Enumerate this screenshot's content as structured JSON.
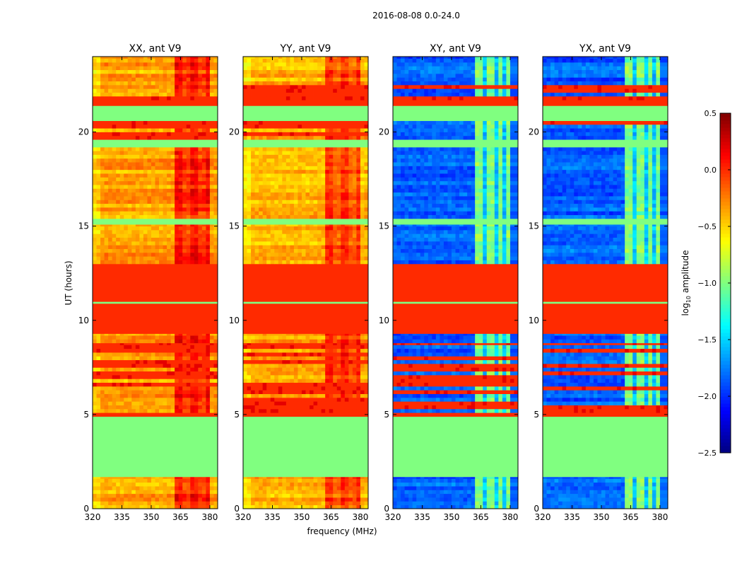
{
  "chart_data": {
    "type": "heatmap",
    "title": "2016-08-08 0.0-24.0",
    "xlabel": "frequency (MHz)",
    "ylabel": "UT (hours)",
    "xlim": [
      320,
      384
    ],
    "ylim": [
      0,
      24
    ],
    "xticks": [
      320,
      335,
      350,
      365,
      380
    ],
    "yticks": [
      0,
      5,
      10,
      15,
      20
    ],
    "colorbar": {
      "label": "log10 amplitude",
      "label_main": "log",
      "label_sub": "10",
      "label_rest": " amplitude",
      "range": [
        -2.5,
        0.5
      ],
      "ticks": [
        "0.5",
        "0.0",
        "−0.5",
        "−1.0",
        "−1.5",
        "−2.0",
        "−2.5"
      ],
      "tick_values": [
        0.5,
        0.0,
        -0.5,
        -1.0,
        -1.5,
        -2.0,
        -2.5
      ],
      "colormap": "jet"
    },
    "panels": [
      {
        "title": "XX, ant V9",
        "base": -0.35,
        "band_level": -0.05
      },
      {
        "title": "YY, ant V9",
        "base": -0.4,
        "band_level": -0.15
      },
      {
        "title": "XY, ant V9",
        "base": -1.85,
        "band_level": -1.0
      },
      {
        "title": "YX, ant V9",
        "base": -1.85,
        "band_level": -1.0
      }
    ],
    "high_band_mhz": [
      362,
      380
    ],
    "time_segments": [
      {
        "from": 0.0,
        "to": 1.7,
        "kind": "data"
      },
      {
        "from": 1.7,
        "to": 4.9,
        "kind": "flat",
        "value": -1.0
      },
      {
        "from": 4.9,
        "to": 5.1,
        "kind": "flat",
        "value": 0.0
      },
      {
        "from": 5.1,
        "to": 8.8,
        "kind": "striped"
      },
      {
        "from": 8.8,
        "to": 9.3,
        "kind": "data"
      },
      {
        "from": 9.3,
        "to": 10.9,
        "kind": "flat",
        "value": 0.0
      },
      {
        "from": 10.9,
        "to": 11.0,
        "kind": "flat",
        "value": -1.0
      },
      {
        "from": 11.0,
        "to": 13.0,
        "kind": "flat",
        "value": 0.0
      },
      {
        "from": 13.0,
        "to": 15.1,
        "kind": "data"
      },
      {
        "from": 15.1,
        "to": 15.4,
        "kind": "flat",
        "value": -1.0
      },
      {
        "from": 15.4,
        "to": 19.2,
        "kind": "data"
      },
      {
        "from": 19.2,
        "to": 19.6,
        "kind": "flat",
        "value": -1.0
      },
      {
        "from": 19.6,
        "to": 20.6,
        "kind": "striped"
      },
      {
        "from": 20.6,
        "to": 21.4,
        "kind": "flat",
        "value": -1.0
      },
      {
        "from": 21.4,
        "to": 21.7,
        "kind": "flat",
        "value": 0.0
      },
      {
        "from": 21.7,
        "to": 22.5,
        "kind": "striped"
      },
      {
        "from": 22.5,
        "to": 24.0,
        "kind": "data"
      }
    ]
  }
}
